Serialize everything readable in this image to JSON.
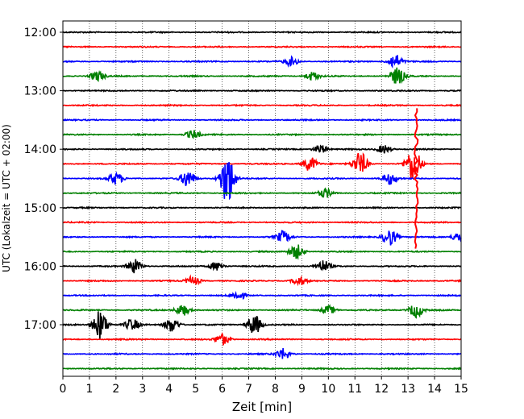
{
  "chart_data": {
    "type": "line",
    "subtype": "seismogram-helicorder",
    "xlabel": "Zeit  [min]",
    "ylabel": "UTC (Lokalzeit = UTC + 02:00)",
    "xlim": [
      0,
      15
    ],
    "x_ticks": [
      "0",
      "1",
      "2",
      "3",
      "4",
      "5",
      "6",
      "7",
      "8",
      "9",
      "10",
      "11",
      "12",
      "13",
      "14",
      "15"
    ],
    "y_ticks": [
      "12:00",
      "13:00",
      "14:00",
      "15:00",
      "16:00",
      "17:00"
    ],
    "grid": "vertical dotted lines at each minute",
    "trace_colors": [
      "#000000",
      "#ff0000",
      "#0000ff",
      "#008000"
    ],
    "traces_count": 24,
    "trace_interval_minutes": 15,
    "start_time_utc": "12:00",
    "events": [
      {
        "row": 3,
        "t": 1.3,
        "amp": 0.35
      },
      {
        "row": 2,
        "t": 12.5,
        "amp": 0.5
      },
      {
        "row": 3,
        "t": 12.6,
        "amp": 0.6
      },
      {
        "row": 3,
        "t": 9.4,
        "amp": 0.3
      },
      {
        "row": 7,
        "t": 4.9,
        "amp": 0.3
      },
      {
        "row": 2,
        "t": 8.6,
        "amp": 0.3
      },
      {
        "row": 8,
        "t": 9.7,
        "amp": 0.3
      },
      {
        "row": 8,
        "t": 12.1,
        "amp": 0.3
      },
      {
        "row": 9,
        "t": 11.2,
        "amp": 0.8
      },
      {
        "row": 9,
        "t": 13.2,
        "amp": 1.2
      },
      {
        "row": 9,
        "t": 9.3,
        "amp": 0.5
      },
      {
        "row": 10,
        "t": 6.2,
        "amp": 1.8
      },
      {
        "row": 10,
        "t": 4.7,
        "amp": 0.6
      },
      {
        "row": 10,
        "t": 2.0,
        "amp": 0.4
      },
      {
        "row": 10,
        "t": 12.3,
        "amp": 0.4
      },
      {
        "row": 11,
        "t": 9.9,
        "amp": 0.3
      },
      {
        "row": 14,
        "t": 12.3,
        "amp": 0.6
      },
      {
        "row": 14,
        "t": 8.3,
        "amp": 0.4
      },
      {
        "row": 14,
        "t": 14.9,
        "amp": 0.3
      },
      {
        "row": 15,
        "t": 8.8,
        "amp": 0.5
      },
      {
        "row": 16,
        "t": 2.7,
        "amp": 0.5
      },
      {
        "row": 16,
        "t": 9.8,
        "amp": 0.4
      },
      {
        "row": 16,
        "t": 5.8,
        "amp": 0.3
      },
      {
        "row": 17,
        "t": 4.9,
        "amp": 0.3
      },
      {
        "row": 17,
        "t": 8.9,
        "amp": 0.3
      },
      {
        "row": 18,
        "t": 6.6,
        "amp": 0.3
      },
      {
        "row": 19,
        "t": 13.3,
        "amp": 0.5
      },
      {
        "row": 19,
        "t": 4.5,
        "amp": 0.4
      },
      {
        "row": 19,
        "t": 10.0,
        "amp": 0.3
      },
      {
        "row": 20,
        "t": 1.4,
        "amp": 1.0
      },
      {
        "row": 20,
        "t": 7.2,
        "amp": 0.7
      },
      {
        "row": 20,
        "t": 4.1,
        "amp": 0.5
      },
      {
        "row": 20,
        "t": 2.6,
        "amp": 0.4
      },
      {
        "row": 21,
        "t": 6.0,
        "amp": 0.4
      },
      {
        "row": 22,
        "t": 8.3,
        "amp": 0.4
      }
    ],
    "large_event": {
      "row": 10,
      "t": 13.3,
      "amp": 8.0,
      "color": "#ff0000"
    }
  }
}
